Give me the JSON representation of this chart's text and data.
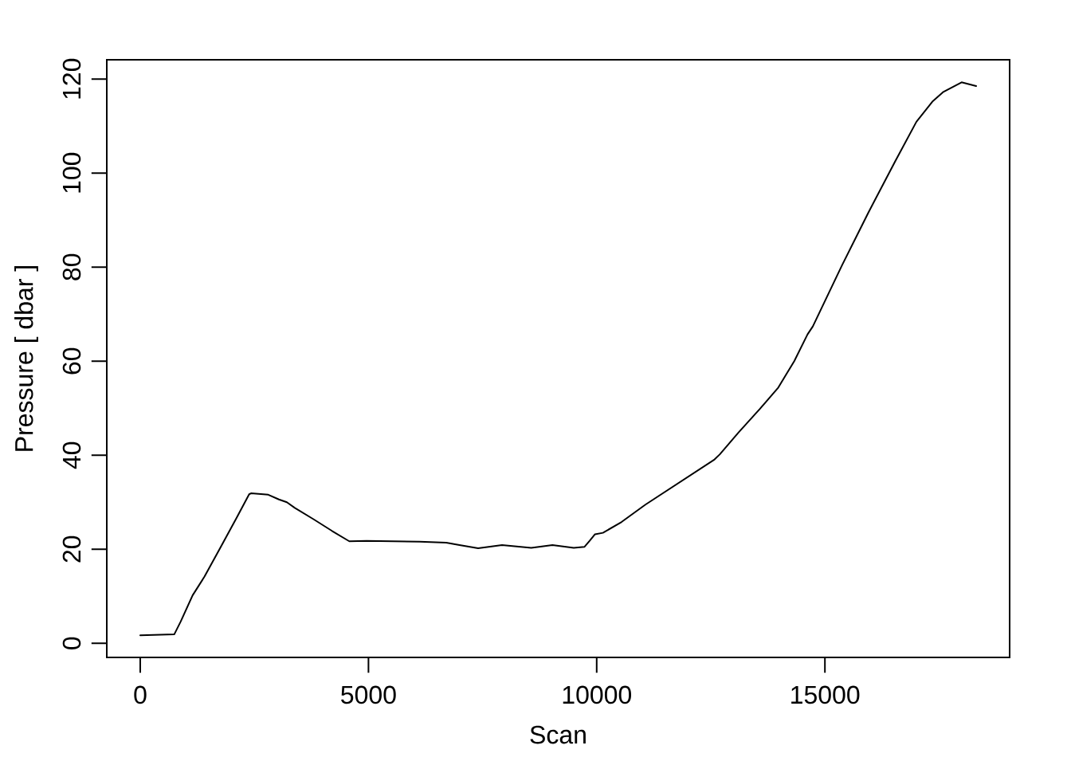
{
  "chart_data": {
    "type": "line",
    "xlabel": "Scan",
    "ylabel": "Pressure [ dbar ]",
    "x": [
      0,
      745,
      885,
      1147,
      1408,
      1758,
      2107,
      2386,
      2427,
      2805,
      3038,
      3212,
      3387,
      3794,
      4202,
      4580,
      4958,
      5540,
      6122,
      6704,
      6995,
      7402,
      7926,
      8566,
      9031,
      9497,
      9730,
      9846,
      9963,
      10137,
      10545,
      11068,
      11825,
      12582,
      12698,
      13105,
      13571,
      13979,
      14153,
      14328,
      14619,
      14735,
      15375,
      15957,
      16539,
      17004,
      17354,
      17586,
      17994,
      18314
    ],
    "series": [
      {
        "color": "#000000",
        "values": [
          1.7,
          1.9,
          4.6,
          10.2,
          14.2,
          20.4,
          26.6,
          31.7,
          31.9,
          31.6,
          30.6,
          30.0,
          28.8,
          26.4,
          23.9,
          21.7,
          21.8,
          21.7,
          21.6,
          21.4,
          20.9,
          20.2,
          20.9,
          20.3,
          20.9,
          20.3,
          20.5,
          21.8,
          23.2,
          23.5,
          25.8,
          29.5,
          34.3,
          39.1,
          40.2,
          44.8,
          49.8,
          54.4,
          57.2,
          60.0,
          65.7,
          67.4,
          80.4,
          91.7,
          102.5,
          110.9,
          115.2,
          117.2,
          119.3,
          118.5
        ]
      }
    ],
    "xlim": [
      -733,
      19047
    ],
    "ylim": [
      -3.0,
      124.1
    ],
    "xticks": [
      0,
      5000,
      10000,
      15000
    ],
    "yticks": [
      0,
      20,
      40,
      60,
      80,
      100,
      120
    ],
    "marker": "none",
    "line_style": "solid"
  }
}
